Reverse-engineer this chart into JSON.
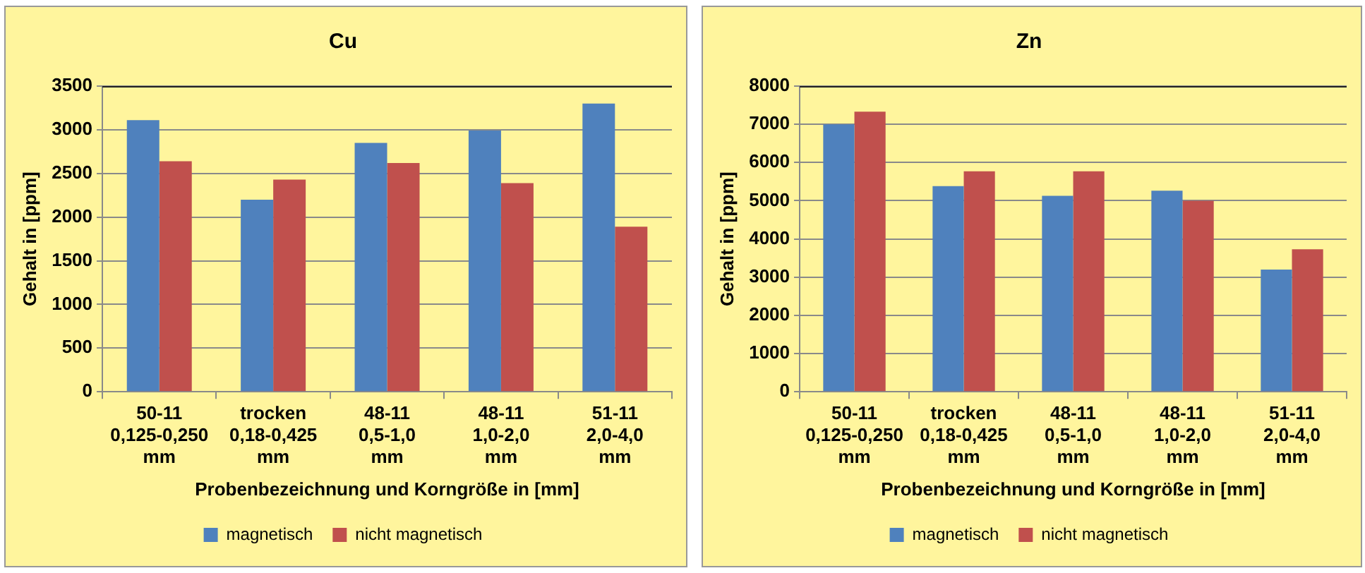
{
  "chart_data": [
    {
      "type": "bar",
      "title": "Cu",
      "xlabel": "Probenbezeichnung und Korngröße in [mm]",
      "ylabel": "Gehalt in [ppm]",
      "categories": [
        "50-11 0,125-0,250 mm",
        "trocken 0,18-0,425 mm",
        "48-11 0,5-1,0 mm",
        "48-11 1,0-2,0 mm",
        "51-11 2,0-4,0 mm"
      ],
      "series": [
        {
          "name": "magnetisch",
          "color": "#4f81bd",
          "values": [
            3110,
            2200,
            2850,
            2990,
            3300
          ]
        },
        {
          "name": "nicht magnetisch",
          "color": "#c0504d",
          "values": [
            2640,
            2430,
            2620,
            2390,
            1890
          ]
        }
      ],
      "ylim": [
        0,
        3500
      ],
      "yticks": [
        0,
        500,
        1000,
        1500,
        2000,
        2500,
        3000,
        3500
      ],
      "grid": "y",
      "legend": "bottom"
    },
    {
      "type": "bar",
      "title": "Zn",
      "xlabel": "Probenbezeichnung und Korngröße in [mm]",
      "ylabel": "Gehalt in [ppm]",
      "categories": [
        "50-11 0,125-0,250 mm",
        "trocken 0,18-0,425 mm",
        "48-11 0,5-1,0 mm",
        "48-11 1,0-2,0 mm",
        "51-11 2,0-4,0 mm"
      ],
      "series": [
        {
          "name": "magnetisch",
          "color": "#4f81bd",
          "values": [
            7000,
            5380,
            5130,
            5260,
            3200
          ]
        },
        {
          "name": "nicht magnetisch",
          "color": "#c0504d",
          "values": [
            7330,
            5770,
            5770,
            5000,
            3730
          ]
        }
      ],
      "ylim": [
        0,
        8000
      ],
      "yticks": [
        0,
        1000,
        2000,
        3000,
        4000,
        5000,
        6000,
        7000,
        8000
      ],
      "grid": "y",
      "legend": "bottom"
    }
  ]
}
